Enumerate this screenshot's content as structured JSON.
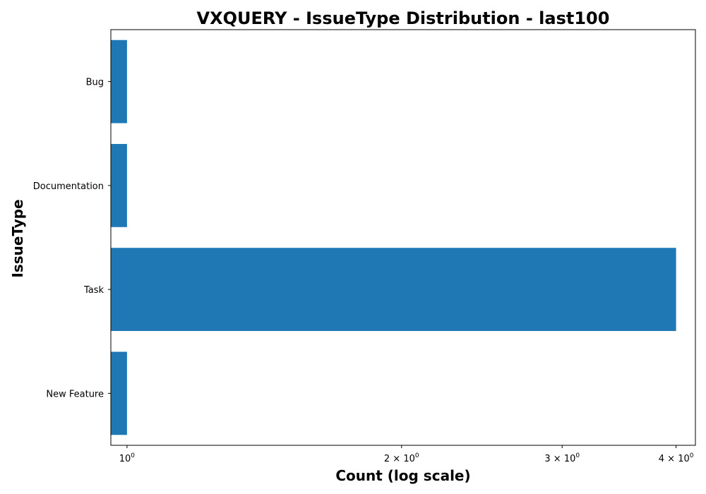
{
  "chart_data": {
    "type": "bar",
    "orientation": "horizontal",
    "title": "VXQUERY - IssueType Distribution - last100",
    "xlabel": "Count (log scale)",
    "ylabel": "IssueType",
    "x_scale": "log",
    "xlim": [
      0.96,
      4.2
    ],
    "categories": [
      "Bug",
      "Documentation",
      "Task",
      "New Feature"
    ],
    "series": [
      {
        "values": [
          1,
          1,
          4,
          1
        ],
        "color": "#1f77b4"
      }
    ],
    "x_ticks": [
      {
        "base": "10",
        "exp": "0",
        "mult": ""
      },
      {
        "base": "10",
        "exp": "0",
        "mult": "2 × "
      },
      {
        "base": "10",
        "exp": "0",
        "mult": "3 × "
      },
      {
        "base": "10",
        "exp": "0",
        "mult": "4 × "
      }
    ],
    "x_tick_values": [
      1,
      2,
      3,
      4
    ],
    "grid": false,
    "legend": "none"
  }
}
